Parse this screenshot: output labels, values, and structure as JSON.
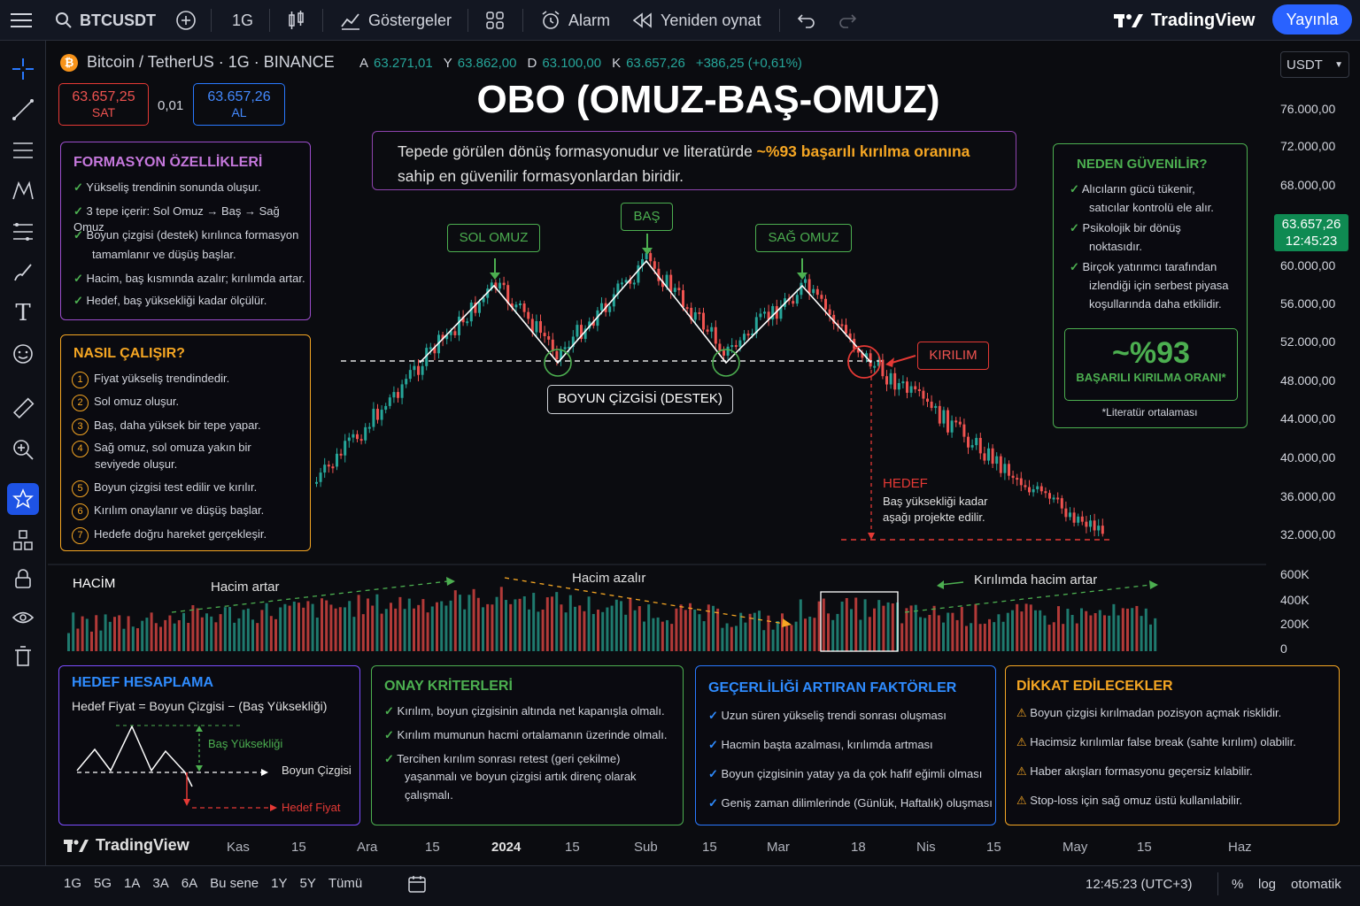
{
  "topbar": {
    "symbol": "BTCUSDT",
    "interval": "1G",
    "indicators": "Göstergeler",
    "alarm": "Alarm",
    "replay": "Yeniden oynat",
    "brand": "TradingView",
    "publish": "Yayınla"
  },
  "legend": {
    "title": "Bitcoin / TetherUS · 1G · BINANCE",
    "a_label": "A",
    "a": "63.271,01",
    "y_label": "Y",
    "y": "63.862,00",
    "d_label": "D",
    "d": "63.100,00",
    "k_label": "K",
    "k": "63.657,26",
    "change": "+386,25 (+0,61%)",
    "currency": "USDT"
  },
  "trade": {
    "sell_price": "63.657,25",
    "sell": "SAT",
    "spread": "0,01",
    "buy_price": "63.657,26",
    "buy": "AL"
  },
  "headline": {
    "title": "OBO (OMUZ-BAŞ-OMUZ)",
    "intro_a": "Tepede görülen dönüş formasyonudur ve literatürde ",
    "intro_highlight": "~%93 başarılı kırılma oranına",
    "intro_b": "sahip en güvenilir formasyonlardan biridir."
  },
  "features": {
    "title": "FORMASYON ÖZELLİKLERİ",
    "items": [
      "Yükseliş trendinin sonunda oluşur.",
      "3 tepe içerir: Sol Omuz → Baş → Sağ Omuz",
      "Boyun çizgisi (destek) kırılınca formasyon",
      "tamamlanır ve düşüş başlar.",
      "Hacim, baş kısmında azalır; kırılımda artar.",
      "Hedef, baş yüksekliği kadar ölçülür."
    ]
  },
  "how": {
    "title": "NASIL ÇALIŞIR?",
    "nums": [
      "1",
      "2",
      "3",
      "4",
      "5",
      "6",
      "7"
    ],
    "items": [
      "Fiyat yükseliş trendindedir.",
      "Sol omuz oluşur.",
      "Baş, daha yüksek bir tepe yapar.",
      "Sağ omuz, sol omuza yakın bir",
      "seviyede oluşur.",
      "Boyun çizgisi test edilir ve kırılır.",
      "Kırılım onaylanır ve düşüş başlar.",
      "Hedefe doğru hareket gerçekleşir."
    ]
  },
  "why": {
    "title": "NEDEN GÜVENİLİR?",
    "items": [
      "Alıcıların gücü tükenir,",
      "satıcılar kontrolü ele alır.",
      "Psikolojik bir dönüş",
      "noktasıdır.",
      "Birçok yatırımcı tarafından",
      "izlendiği için serbest piyasa",
      "koşullarında daha etkilidir."
    ],
    "rate": "~%93",
    "rate_label": "BAŞARILI KIRILMA ORANI*",
    "note": "*Literatür ortalaması"
  },
  "annotations": {
    "left_shoulder": "SOL OMUZ",
    "head": "BAŞ",
    "right_shoulder": "SAĞ OMUZ",
    "neckline": "BOYUN ÇİZGİSİ (DESTEK)",
    "breakout": "KIRILIM",
    "target": "HEDEF",
    "target_desc1": "Baş yüksekliği kadar",
    "target_desc2": "aşağı projekte edilir."
  },
  "price_axis": {
    "ticks": [
      "76.000,00",
      "72.000,00",
      "68.000,00",
      "60.000,00",
      "56.000,00",
      "52.000,00",
      "48.000,00",
      "44.000,00",
      "40.000,00",
      "36.000,00",
      "32.000,00"
    ],
    "last_price": "63.657,26",
    "last_time": "12:45:23"
  },
  "volume": {
    "title": "HACİM",
    "rising": "Hacim artar",
    "falling": "Hacim azalır",
    "breakout": "Kırılımda hacim artar",
    "ticks": [
      "600K",
      "400K",
      "200K",
      "0"
    ]
  },
  "target_calc": {
    "title": "HEDEF HESAPLAMA",
    "formula": "Hedef Fiyat = Boyun Çizgisi − (Baş Yüksekliği)",
    "head_height": "Baş Yüksekliği",
    "neck": "Boyun Çizgisi",
    "target": "Hedef Fiyat"
  },
  "confirm": {
    "title": "ONAY KRİTERLERİ",
    "items": [
      "Kırılım, boyun çizgisinin altında net kapanışla olmalı.",
      "Kırılım mumunun hacmi ortalamanın üzerinde olmalı.",
      "Tercihen kırılım sonrası retest (geri çekilme)",
      "yaşanmalı ve boyun çizgisi artık direnç olarak",
      "çalışmalı."
    ]
  },
  "factors": {
    "title": "GEÇERLİLİĞİ ARTIRAN FAKTÖRLER",
    "items": [
      "Uzun süren yükseliş trendi sonrası oluşması",
      "Hacmin başta azalması, kırılımda artması",
      "Boyun çizgisinin yatay ya da çok hafif eğimli olması",
      "Geniş zaman dilimlerinde (Günlük, Haftalık) oluşması"
    ]
  },
  "caution": {
    "title": "DİKKAT EDİLECEKLER",
    "items": [
      "Boyun çizgisi kırılmadan pozisyon açmak risklidir.",
      "Hacimsiz kırılımlar false break (sahte kırılım) olabilir.",
      "Haber akışları formasyonu geçersiz kılabilir.",
      "Stop-loss için sağ omuz üstü kullanılabilir."
    ]
  },
  "time_axis": {
    "brand": "TradingView",
    "ticks": [
      "Kas",
      "15",
      "Ara",
      "15",
      "2024",
      "15",
      "Sub",
      "15",
      "Mar",
      "18",
      "Nis",
      "15",
      "May",
      "15",
      "Haz"
    ]
  },
  "bottom": {
    "ranges": [
      "1G",
      "5G",
      "1A",
      "3A",
      "6A",
      "Bu sene",
      "1Y",
      "5Y",
      "Tümü"
    ],
    "clock": "12:45:23 (UTC+3)",
    "pct": "%",
    "log": "log",
    "auto": "otomatik"
  },
  "colors": {
    "up": "#26a69a",
    "down": "#ef5350",
    "accent": "#2962ff",
    "purple": "#9c4dcc",
    "orange": "#f5a623",
    "green": "#4caf50",
    "blue": "#2979ff",
    "price_tag": "#0f8a52"
  }
}
